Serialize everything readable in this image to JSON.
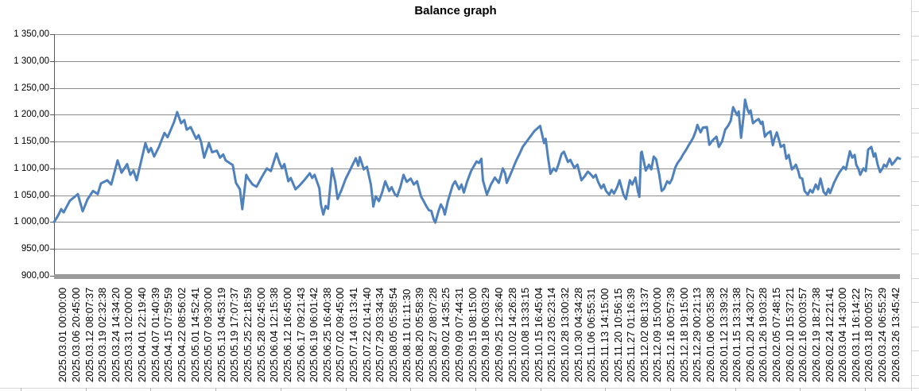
{
  "title": "Balance graph",
  "colors": {
    "series_line": "#4F81BD",
    "gridline": "#8c8c8c",
    "axis_line": "#595959",
    "axis_band": "#9b9b9b",
    "sheet_grid": "#d4d4d4",
    "title_text": "#000000"
  },
  "y_axis": {
    "labels": [
      "1 350,00",
      "1 300,00",
      "1 250,00",
      "1 200,00",
      "1 150,00",
      "1 100,00",
      "1 050,00",
      "1 000,00",
      "950,00",
      "900,00"
    ]
  },
  "chart_data": {
    "type": "line",
    "title": "Balance graph",
    "xlabel": "",
    "ylabel": "",
    "ylim": [
      900,
      1350
    ],
    "y_tick_step": 50,
    "grid": true,
    "legend": "none",
    "x_tick_labels": [
      "2025.03.01 00:00:00",
      "2025.03.06 20:45:00",
      "2025.03.12 08:07:37",
      "2025.03.19 02:32:38",
      "2025.03.24 14:34:20",
      "2025.03.31 02:00:00",
      "2025.04.01 22:19:40",
      "2025.04.07 01:40:39",
      "2025.04.15 07:59:59",
      "2025.04.22 08:56:02",
      "2025.05.01 14:52:41",
      "2025.05.07 09:30:00",
      "2025.05.13 04:53:19",
      "2025.05.19 17:07:37",
      "2025.05.25 22:18:59",
      "2025.05.28 02:45:00",
      "2025.06.04 12:15:38",
      "2025.06.12 16:45:00",
      "2025.06.17 09:21:43",
      "2025.06.19 06:01:42",
      "2025.06.25 16:40:38",
      "2025.07.02 09:45:00",
      "2025.07.14 03:13:41",
      "2025.07.22 01:41:40",
      "2025.07.29 03:34:34",
      "2025.08.05 05:58:54",
      "2025.08.11 01:11:30",
      "2025.08.20 05:58:39",
      "2025.08.27 08:07:28",
      "2025.09.02 14:35:25",
      "2025.09.09 07:44:31",
      "2025.09.15 08:15:00",
      "2025.09.18 06:03:29",
      "2025.09.25 12:36:40",
      "2025.10.02 14:26:28",
      "2025.10.08 13:33:15",
      "2025.10.15 16:45:04",
      "2025.10.23 05:23:14",
      "2025.10.28 13:00:32",
      "2025.10.30 04:34:28",
      "2025.11.06 06:55:31",
      "2025.11.13 14:15:00",
      "2025.11.20 10:56:15",
      "2025.11.27 01:16:39",
      "2025.12.02 08:13:37",
      "2025.12.09 15:00:00",
      "2025.12.16 00:57:39",
      "2025.12.18 19:15:00",
      "2025.12.29 00:21:13",
      "2026.01.06 00:35:38",
      "2026.01.12 13:39:32",
      "2026.01.15 13:31:38",
      "2026.01.20 14:30:27",
      "2026.01.26 19:03:28",
      "2026.02.05 07:48:15",
      "2026.02.10 15:37:21",
      "2026.02.16 00:03:57",
      "2026.02.19 18:27:38",
      "2026.02.24 12:21:41",
      "2026.03.04 14:30:00",
      "2026.03.11 16:14:22",
      "2026.03.18 00:05:37",
      "2026.03.24 06:55:29",
      "2026.03.26 13:45:42"
    ],
    "series": [
      {
        "name": "Balance",
        "color": "#4F81BD",
        "x_unit": "position along time axis, 0..1065",
        "x_pos_max": 1065,
        "points": [
          [
            0,
            1000
          ],
          [
            5,
            1012
          ],
          [
            9,
            1024
          ],
          [
            12,
            1018
          ],
          [
            20,
            1040
          ],
          [
            30,
            1052
          ],
          [
            36,
            1020
          ],
          [
            42,
            1042
          ],
          [
            49,
            1058
          ],
          [
            55,
            1052
          ],
          [
            59,
            1072
          ],
          [
            67,
            1078
          ],
          [
            72,
            1070
          ],
          [
            80,
            1115
          ],
          [
            85,
            1092
          ],
          [
            92,
            1108
          ],
          [
            96,
            1088
          ],
          [
            100,
            1096
          ],
          [
            104,
            1078
          ],
          [
            115,
            1147
          ],
          [
            119,
            1130
          ],
          [
            122,
            1138
          ],
          [
            126,
            1122
          ],
          [
            132,
            1140
          ],
          [
            139,
            1166
          ],
          [
            143,
            1158
          ],
          [
            147,
            1172
          ],
          [
            151,
            1186
          ],
          [
            155,
            1205
          ],
          [
            160,
            1184
          ],
          [
            164,
            1190
          ],
          [
            167,
            1172
          ],
          [
            172,
            1177
          ],
          [
            179,
            1155
          ],
          [
            182,
            1162
          ],
          [
            185,
            1150
          ],
          [
            189,
            1120
          ],
          [
            195,
            1147
          ],
          [
            199,
            1130
          ],
          [
            205,
            1133
          ],
          [
            209,
            1120
          ],
          [
            213,
            1126
          ],
          [
            216,
            1115
          ],
          [
            225,
            1106
          ],
          [
            229,
            1073
          ],
          [
            234,
            1061
          ],
          [
            237,
            1024
          ],
          [
            242,
            1088
          ],
          [
            245,
            1080
          ],
          [
            250,
            1070
          ],
          [
            255,
            1066
          ],
          [
            262,
            1085
          ],
          [
            268,
            1100
          ],
          [
            273,
            1095
          ],
          [
            280,
            1128
          ],
          [
            284,
            1110
          ],
          [
            287,
            1100
          ],
          [
            290,
            1108
          ],
          [
            295,
            1076
          ],
          [
            298,
            1082
          ],
          [
            304,
            1061
          ],
          [
            309,
            1068
          ],
          [
            315,
            1078
          ],
          [
            322,
            1091
          ],
          [
            325,
            1082
          ],
          [
            328,
            1088
          ],
          [
            334,
            1063
          ],
          [
            336,
            1033
          ],
          [
            339,
            1014
          ],
          [
            342,
            1030
          ],
          [
            345,
            1025
          ],
          [
            350,
            1100
          ],
          [
            354,
            1075
          ],
          [
            357,
            1043
          ],
          [
            362,
            1060
          ],
          [
            367,
            1080
          ],
          [
            372,
            1095
          ],
          [
            377,
            1110
          ],
          [
            380,
            1119
          ],
          [
            383,
            1105
          ],
          [
            385,
            1121
          ],
          [
            390,
            1098
          ],
          [
            394,
            1103
          ],
          [
            399,
            1069
          ],
          [
            402,
            1029
          ],
          [
            405,
            1048
          ],
          [
            409,
            1039
          ],
          [
            413,
            1055
          ],
          [
            417,
            1076
          ],
          [
            422,
            1058
          ],
          [
            425,
            1065
          ],
          [
            429,
            1052
          ],
          [
            432,
            1048
          ],
          [
            436,
            1065
          ],
          [
            440,
            1088
          ],
          [
            444,
            1075
          ],
          [
            449,
            1081
          ],
          [
            453,
            1070
          ],
          [
            457,
            1076
          ],
          [
            462,
            1048
          ],
          [
            465,
            1040
          ],
          [
            469,
            1029
          ],
          [
            472,
            1022
          ],
          [
            475,
            1021
          ],
          [
            478,
            1005
          ],
          [
            480,
            999
          ],
          [
            484,
            1020
          ],
          [
            487,
            1033
          ],
          [
            490,
            1025
          ],
          [
            492,
            1014
          ],
          [
            496,
            1040
          ],
          [
            502,
            1069
          ],
          [
            505,
            1076
          ],
          [
            510,
            1061
          ],
          [
            513,
            1070
          ],
          [
            516,
            1055
          ],
          [
            520,
            1075
          ],
          [
            525,
            1095
          ],
          [
            532,
            1113
          ],
          [
            535,
            1110
          ],
          [
            538,
            1118
          ],
          [
            540,
            1078
          ],
          [
            545,
            1051
          ],
          [
            550,
            1070
          ],
          [
            555,
            1083
          ],
          [
            560,
            1073
          ],
          [
            565,
            1100
          ],
          [
            568,
            1090
          ],
          [
            570,
            1073
          ],
          [
            575,
            1090
          ],
          [
            582,
            1115
          ],
          [
            587,
            1130
          ],
          [
            590,
            1140
          ],
          [
            595,
            1150
          ],
          [
            600,
            1160
          ],
          [
            605,
            1170
          ],
          [
            612,
            1179
          ],
          [
            617,
            1147
          ],
          [
            619,
            1155
          ],
          [
            622,
            1120
          ],
          [
            625,
            1090
          ],
          [
            629,
            1100
          ],
          [
            632,
            1095
          ],
          [
            635,
            1107
          ],
          [
            639,
            1127
          ],
          [
            642,
            1131
          ],
          [
            647,
            1112
          ],
          [
            650,
            1116
          ],
          [
            655,
            1101
          ],
          [
            659,
            1107
          ],
          [
            664,
            1078
          ],
          [
            668,
            1085
          ],
          [
            672,
            1094
          ],
          [
            675,
            1090
          ],
          [
            679,
            1083
          ],
          [
            682,
            1088
          ],
          [
            685,
            1075
          ],
          [
            689,
            1063
          ],
          [
            692,
            1070
          ],
          [
            695,
            1058
          ],
          [
            699,
            1051
          ],
          [
            702,
            1060
          ],
          [
            705,
            1053
          ],
          [
            709,
            1065
          ],
          [
            712,
            1078
          ],
          [
            717,
            1051
          ],
          [
            720,
            1043
          ],
          [
            725,
            1078
          ],
          [
            728,
            1070
          ],
          [
            732,
            1083
          ],
          [
            735,
            1058
          ],
          [
            737,
            1047
          ],
          [
            739,
            1129
          ],
          [
            740,
            1131
          ],
          [
            745,
            1096
          ],
          [
            749,
            1107
          ],
          [
            752,
            1098
          ],
          [
            755,
            1122
          ],
          [
            758,
            1117
          ],
          [
            762,
            1088
          ],
          [
            765,
            1058
          ],
          [
            768,
            1062
          ],
          [
            772,
            1076
          ],
          [
            775,
            1072
          ],
          [
            778,
            1080
          ],
          [
            782,
            1101
          ],
          [
            785,
            1110
          ],
          [
            789,
            1118
          ],
          [
            792,
            1126
          ],
          [
            796,
            1135
          ],
          [
            799,
            1143
          ],
          [
            802,
            1150
          ],
          [
            805,
            1158
          ],
          [
            808,
            1170
          ],
          [
            810,
            1181
          ],
          [
            814,
            1167
          ],
          [
            817,
            1176
          ],
          [
            822,
            1177
          ],
          [
            825,
            1144
          ],
          [
            829,
            1152
          ],
          [
            834,
            1159
          ],
          [
            837,
            1140
          ],
          [
            841,
            1150
          ],
          [
            845,
            1172
          ],
          [
            849,
            1180
          ],
          [
            852,
            1189
          ],
          [
            855,
            1214
          ],
          [
            858,
            1205
          ],
          [
            860,
            1199
          ],
          [
            862,
            1206
          ],
          [
            865,
            1157
          ],
          [
            868,
            1195
          ],
          [
            870,
            1228
          ],
          [
            873,
            1210
          ],
          [
            875,
            1203
          ],
          [
            877,
            1208
          ],
          [
            880,
            1184
          ],
          [
            883,
            1188
          ],
          [
            887,
            1192
          ],
          [
            890,
            1183
          ],
          [
            892,
            1187
          ],
          [
            895,
            1159
          ],
          [
            898,
            1165
          ],
          [
            902,
            1169
          ],
          [
            905,
            1143
          ],
          [
            907,
            1155
          ],
          [
            910,
            1167
          ],
          [
            913,
            1152
          ],
          [
            915,
            1140
          ],
          [
            919,
            1144
          ],
          [
            922,
            1118
          ],
          [
            925,
            1125
          ],
          [
            929,
            1098
          ],
          [
            932,
            1103
          ],
          [
            934,
            1107
          ],
          [
            937,
            1095
          ],
          [
            939,
            1083
          ],
          [
            942,
            1081
          ],
          [
            945,
            1058
          ],
          [
            949,
            1051
          ],
          [
            952,
            1060
          ],
          [
            955,
            1055
          ],
          [
            959,
            1070
          ],
          [
            962,
            1061
          ],
          [
            965,
            1081
          ],
          [
            969,
            1056
          ],
          [
            972,
            1051
          ],
          [
            975,
            1062
          ],
          [
            977,
            1054
          ],
          [
            982,
            1073
          ],
          [
            986,
            1085
          ],
          [
            989,
            1093
          ],
          [
            994,
            1103
          ],
          [
            997,
            1098
          ],
          [
            1002,
            1132
          ],
          [
            1005,
            1120
          ],
          [
            1008,
            1125
          ],
          [
            1010,
            1107
          ],
          [
            1013,
            1098
          ],
          [
            1015,
            1088
          ],
          [
            1019,
            1100
          ],
          [
            1022,
            1095
          ],
          [
            1025,
            1135
          ],
          [
            1029,
            1140
          ],
          [
            1032,
            1122
          ],
          [
            1034,
            1128
          ],
          [
            1037,
            1107
          ],
          [
            1040,
            1093
          ],
          [
            1043,
            1100
          ],
          [
            1045,
            1107
          ],
          [
            1048,
            1103
          ],
          [
            1052,
            1118
          ],
          [
            1055,
            1107
          ],
          [
            1058,
            1112
          ],
          [
            1062,
            1120
          ],
          [
            1065,
            1118
          ]
        ]
      }
    ]
  }
}
